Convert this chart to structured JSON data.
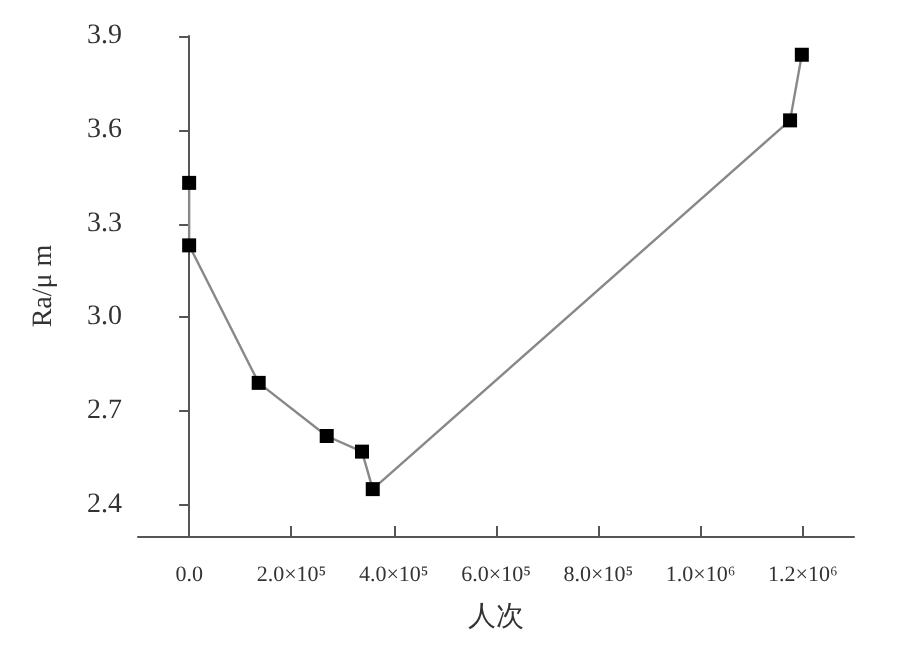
{
  "chart_data": {
    "type": "line",
    "xlabel": "人次",
    "ylabel": "Ra/μ m",
    "x": [
      0,
      0,
      136000,
      269000,
      338000,
      359000,
      1175000,
      1198000
    ],
    "series": [
      {
        "color": "#000000",
        "values": [
          3.43,
          3.23,
          2.79,
          2.62,
          2.57,
          2.45,
          3.63,
          3.84
        ]
      }
    ],
    "xlim": [
      -100000,
      1300000
    ],
    "xticks": [
      {
        "value": 0,
        "label": "0.0"
      },
      {
        "value": 200000,
        "label": "2.0×10⁵"
      },
      {
        "value": 400000,
        "label": "4.0×10⁵"
      },
      {
        "value": 600000,
        "label": "6.0×10⁵"
      },
      {
        "value": 800000,
        "label": "8.0×10⁵"
      },
      {
        "value": 1000000,
        "label": "1.0×10⁶"
      },
      {
        "value": 1200000,
        "label": "1.2×10⁶"
      }
    ],
    "ylim": [
      2.3,
      3.9
    ],
    "yticks": [
      {
        "value": 2.4,
        "label": "2.4"
      },
      {
        "value": 2.7,
        "label": "2.7"
      },
      {
        "value": 3.0,
        "label": "3.0"
      },
      {
        "value": 3.3,
        "label": "3.3"
      },
      {
        "value": 3.6,
        "label": "3.6"
      },
      {
        "value": 3.9,
        "label": "3.9"
      }
    ],
    "grid": false,
    "marker": "square",
    "line_style": "solid"
  }
}
